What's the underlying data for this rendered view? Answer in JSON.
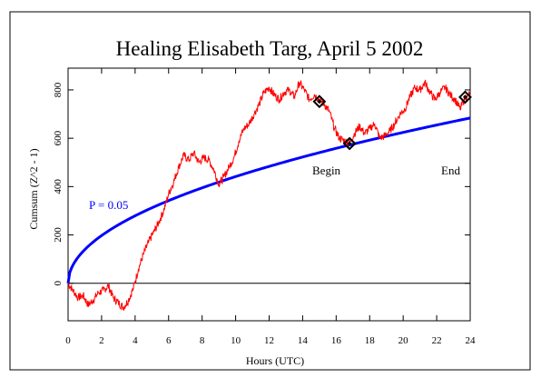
{
  "chart_data": {
    "type": "line",
    "title": "Healing Elisabeth Targ, April 5 2002",
    "xlabel": "Hours (UTC)",
    "ylabel": "Cumsum (Z^2 - 1)",
    "xlim": [
      0,
      24
    ],
    "ylim": [
      -155,
      890
    ],
    "x_ticks": [
      "0",
      "2",
      "4",
      "6",
      "8",
      "10",
      "12",
      "14",
      "16",
      "18",
      "20",
      "22",
      "24"
    ],
    "y_ticks": [
      "0",
      "200",
      "400",
      "600",
      "800"
    ],
    "grid": false,
    "colors": {
      "cumsum": "#ff0000",
      "probability": "#0000ff",
      "baseline": "#000000"
    },
    "series": [
      {
        "id": "cumsum",
        "x": [
          0,
          0.3,
          0.6,
          0.9,
          1.2,
          1.5,
          1.8,
          2.1,
          2.4,
          2.7,
          3.0,
          3.3,
          3.6,
          3.9,
          4.2,
          4.5,
          4.8,
          5.1,
          5.4,
          5.7,
          6.0,
          6.3,
          6.6,
          6.9,
          7.2,
          7.5,
          7.8,
          8.1,
          8.4,
          8.7,
          9.0,
          9.3,
          9.6,
          9.9,
          10.2,
          10.5,
          10.8,
          11.1,
          11.4,
          11.7,
          12.0,
          12.3,
          12.6,
          12.9,
          13.2,
          13.5,
          13.8,
          14.1,
          14.4,
          14.7,
          15.0,
          15.3,
          15.6,
          15.9,
          16.2,
          16.5,
          16.8,
          17.1,
          17.4,
          17.7,
          18.0,
          18.3,
          18.6,
          18.9,
          19.2,
          19.5,
          19.8,
          20.1,
          20.4,
          20.7,
          21.0,
          21.3,
          21.6,
          21.9,
          22.2,
          22.5,
          22.8,
          23.1,
          23.4,
          23.7,
          24.0
        ],
        "y": [
          0,
          -30,
          -60,
          -50,
          -90,
          -70,
          -40,
          -30,
          -10,
          -60,
          -80,
          -100,
          -70,
          -20,
          60,
          120,
          170,
          210,
          250,
          300,
          370,
          420,
          480,
          530,
          510,
          540,
          500,
          520,
          510,
          470,
          410,
          440,
          480,
          520,
          590,
          640,
          660,
          700,
          740,
          790,
          810,
          780,
          760,
          790,
          800,
          770,
          830,
          800,
          760,
          780,
          760,
          740,
          710,
          640,
          600,
          590,
          580,
          620,
          650,
          620,
          640,
          660,
          600,
          610,
          630,
          660,
          700,
          720,
          770,
          810,
          800,
          830,
          790,
          760,
          790,
          810,
          780,
          760,
          720,
          770,
          780
        ]
      },
      {
        "id": "probability",
        "name": "P = 0.05",
        "formula": "1.645 * sqrt(2 * n)",
        "x_range": [
          0,
          24
        ]
      },
      {
        "id": "baseline",
        "y": 0
      }
    ],
    "markers": [
      {
        "x": 15.0,
        "y": 752
      },
      {
        "x": 16.8,
        "y": 578
      },
      {
        "x": 23.7,
        "y": 770
      }
    ],
    "annotations": [
      "Begin",
      "End",
      "P = 0.05"
    ]
  }
}
